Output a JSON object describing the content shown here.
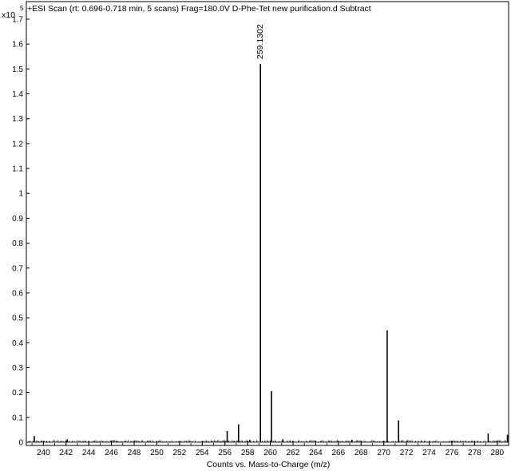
{
  "chart_data": {
    "type": "bar",
    "title": "+ESI Scan (rt: 0.696-0.718 min, 5 scans) Frag=180.0V D-Phe-Tet new purification.d  Subtract",
    "y_multiplier": "x10",
    "y_exponent": "5",
    "xlabel": "Counts vs. Mass-to-Charge (m/z)",
    "ylabel": "",
    "xlim": [
      238.5,
      281.0
    ],
    "ylim": [
      0,
      1.8
    ],
    "x_ticks": [
      240,
      242,
      244,
      246,
      248,
      250,
      252,
      254,
      256,
      258,
      260,
      262,
      264,
      266,
      268,
      270,
      272,
      274,
      276,
      278,
      280
    ],
    "y_ticks": [
      0,
      0.1,
      0.2,
      0.3,
      0.4,
      0.5,
      0.6,
      0.7,
      0.8,
      0.9,
      1,
      1.1,
      1.2,
      1.3,
      1.4,
      1.5,
      1.6,
      1.7
    ],
    "peaks": [
      {
        "mz": 239.2,
        "value": 0.025
      },
      {
        "mz": 242.1,
        "value": 0.012
      },
      {
        "mz": 256.2,
        "value": 0.045
      },
      {
        "mz": 257.2,
        "value": 0.072
      },
      {
        "mz": 258.2,
        "value": 0.01
      },
      {
        "mz": 259.1302,
        "value": 1.52,
        "label": "259.1302"
      },
      {
        "mz": 260.1,
        "value": 0.205
      },
      {
        "mz": 261.1,
        "value": 0.012
      },
      {
        "mz": 267.2,
        "value": 0.01
      },
      {
        "mz": 270.3,
        "value": 0.45
      },
      {
        "mz": 271.3,
        "value": 0.088
      },
      {
        "mz": 279.2,
        "value": 0.035
      },
      {
        "mz": 280.9,
        "value": 0.03
      }
    ],
    "grid": false,
    "legend": "none"
  }
}
